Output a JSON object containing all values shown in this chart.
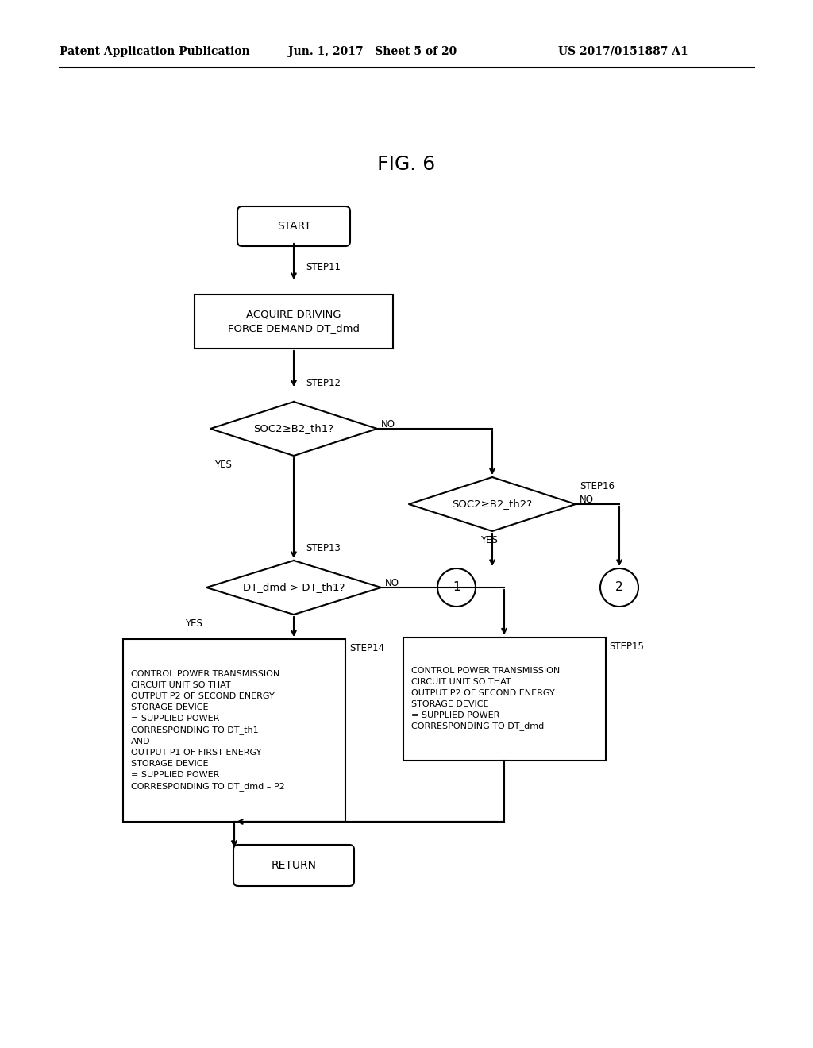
{
  "title": "FIG. 6",
  "header_left": "Patent Application Publication",
  "header_mid": "Jun. 1, 2017   Sheet 5 of 20",
  "header_right": "US 2017/0151887 A1",
  "background_color": "#ffffff",
  "start_label": "START",
  "return_label": "RETURN",
  "step11_label": "ACQUIRE DRIVING\nFORCE DEMAND DT_dmd",
  "step12_label": "SOC2≥B2_th1?",
  "step16_label": "SOC2≥B2_th2?",
  "step13_label": "DT_dmd > DT_th1?",
  "step14_label": "CONTROL POWER TRANSMISSION\nCIRCUIT UNIT SO THAT\nOUTPUT P2 OF SECOND ENERGY\nSTORAGE DEVICE\n= SUPPLIED POWER\nCORRESPONDING TO DT_th1\nAND\nOUTPUT P1 OF FIRST ENERGY\nSTORAGE DEVICE\n= SUPPLIED POWER\nCORRESPONDING TO DT_dmd – P2",
  "step15_label": "CONTROL POWER TRANSMISSION\nCIRCUIT UNIT SO THAT\nOUTPUT P2 OF SECOND ENERGY\nSTORAGE DEVICE\n= SUPPLIED POWER\nCORRESPONDING TO DT_dmd",
  "step11_tag": "STEP11",
  "step12_tag": "STEP12",
  "step13_tag": "STEP13",
  "step14_tag": "STEP14",
  "step15_tag": "STEP15",
  "step16_tag": "STEP16"
}
